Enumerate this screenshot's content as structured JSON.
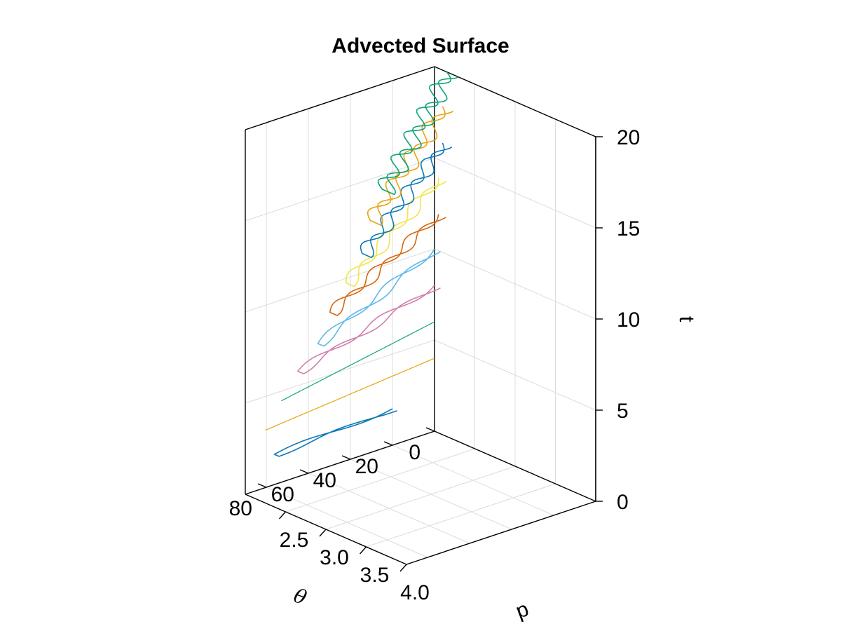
{
  "chart_data": {
    "type": "line3d",
    "title": "Advected Surface",
    "axes": {
      "theta": {
        "label": "θ",
        "range": [
          0,
          90
        ],
        "ticks": [
          0,
          20,
          40,
          60,
          80
        ],
        "tick_labels": [
          "0",
          "20",
          "40",
          "60",
          "80"
        ]
      },
      "p": {
        "label": "p",
        "range": [
          2.0,
          4.0
        ],
        "ticks": [
          2.5,
          3.0,
          3.5,
          4.0
        ],
        "tick_labels": [
          "2.5",
          "3.0",
          "3.5",
          "4.0"
        ]
      },
      "t": {
        "label": "t",
        "range": [
          0,
          20
        ],
        "ticks": [
          0,
          5,
          10,
          15,
          20
        ],
        "tick_labels": [
          "0",
          "5",
          "10",
          "15",
          "20"
        ]
      }
    },
    "grid": true,
    "legend": "none",
    "palette": [
      "#0072B2",
      "#E69F00",
      "#009E73",
      "#CC79A7",
      "#56B4E9",
      "#D55E00",
      "#F0E442"
    ],
    "series": [
      {
        "t": 2,
        "color": "#0072B2",
        "theta_start": 20,
        "theta_end": 80,
        "p_start": 2.0,
        "p_end": 2.1,
        "width": 0.07,
        "tongues": 1,
        "thick": true
      },
      {
        "t": 4,
        "color": "#E69F00",
        "theta_start": 0,
        "theta_end": 90,
        "p_start": 2.0,
        "p_end": 2.25,
        "width": 0.0,
        "tongues": 1,
        "thick": false
      },
      {
        "t": 6,
        "color": "#009E73",
        "theta_start": 0,
        "theta_end": 90,
        "p_start": 2.0,
        "p_end": 2.45,
        "width": 0.0,
        "tongues": 1,
        "thick": false
      },
      {
        "t": 8,
        "color": "#CC79A7",
        "theta_start": 0,
        "theta_end": 90,
        "p_start": 2.0,
        "p_end": 2.65,
        "width": 0.09,
        "tongues": 2,
        "thick": true
      },
      {
        "t": 10,
        "color": "#56B4E9",
        "theta_start": 0,
        "theta_end": 90,
        "p_start": 2.0,
        "p_end": 2.9,
        "width": 0.09,
        "tongues": 2,
        "thick": true
      },
      {
        "t": 12,
        "color": "#D55E00",
        "theta_start": 0,
        "theta_end": 90,
        "p_start": 2.05,
        "p_end": 3.05,
        "width": 0.11,
        "tongues": 3,
        "thick": true
      },
      {
        "t": 14,
        "color": "#F0E442",
        "theta_start": 0,
        "theta_end": 90,
        "p_start": 2.05,
        "p_end": 3.25,
        "width": 0.12,
        "tongues": 3,
        "thick": true
      },
      {
        "t": 16,
        "color": "#0072B2",
        "theta_start": 0,
        "theta_end": 90,
        "p_start": 2.1,
        "p_end": 3.45,
        "width": 0.14,
        "tongues": 4,
        "thick": true
      },
      {
        "t": 18,
        "color": "#E69F00",
        "theta_start": 0,
        "theta_end": 90,
        "p_start": 2.1,
        "p_end": 3.55,
        "width": 0.16,
        "tongues": 4,
        "thick": true
      },
      {
        "t": 20,
        "color": "#009E73",
        "theta_start": 0,
        "theta_end": 90,
        "p_start": 2.15,
        "p_end": 3.7,
        "width": 0.18,
        "tongues": 5,
        "thick": true
      }
    ]
  }
}
